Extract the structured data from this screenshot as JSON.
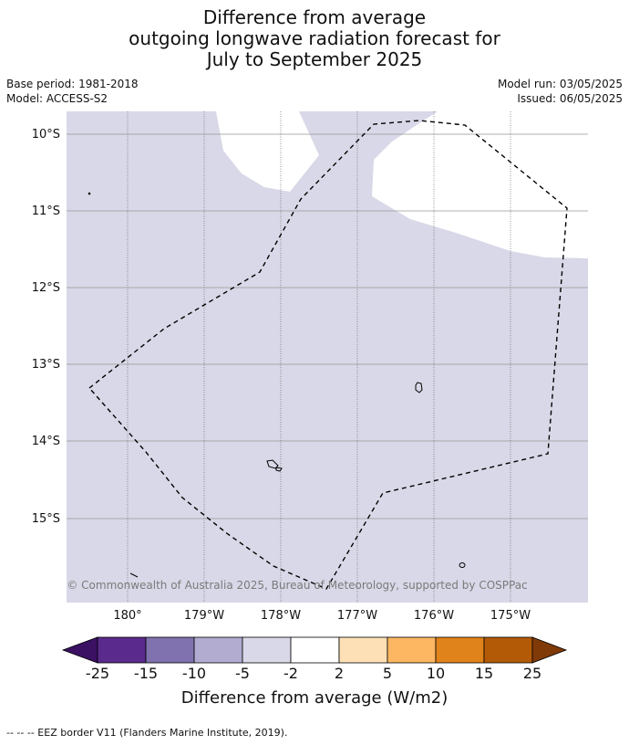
{
  "title": {
    "line1": "Difference from average",
    "line2": "outgoing longwave radiation forecast for",
    "line3": "July to September 2025"
  },
  "meta_left": {
    "base_period": "Base period: 1981-2018",
    "model": "Model: ACCESS-S2"
  },
  "meta_right": {
    "model_run": "Model run: 03/05/2025",
    "issued": "Issued: 06/05/2025"
  },
  "map": {
    "lat_labels": [
      "10°S",
      "11°S",
      "12°S",
      "13°S",
      "14°S",
      "15°S"
    ],
    "lon_labels": [
      "180°",
      "179°W",
      "178°W",
      "177°W",
      "176°W",
      "175°W"
    ],
    "copyright": "© Commonwealth of Australia 2025, Bureau of Meteorology, supported by COSPPac",
    "region_fill_category": "-5 to -2",
    "colors": {
      "anomaly_fill": "#d8d8e8",
      "gridline": "#999999"
    }
  },
  "colorbar": {
    "ticks": [
      "-25",
      "-15",
      "-10",
      "-5",
      "-2",
      "2",
      "5",
      "10",
      "15",
      "25"
    ],
    "colors": [
      "#3b1163",
      "#5a2a8c",
      "#8072ae",
      "#b2acd1",
      "#d8d8e8",
      "#ffffff",
      "#fde0b6",
      "#fdb762",
      "#e0831a",
      "#b35a07",
      "#7f3a08"
    ],
    "title": "Difference from average (W/m2)"
  },
  "footnote": "-- -- -- EEZ border V11 (Flanders Marine Institute, 2019)."
}
